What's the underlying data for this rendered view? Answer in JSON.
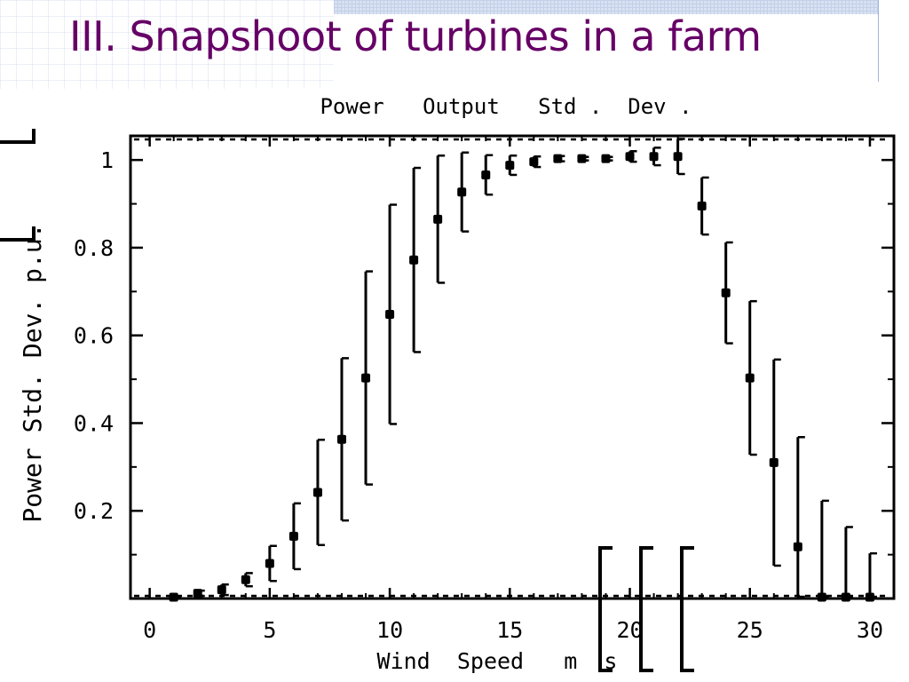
{
  "slide": {
    "title": "III. Snapshoot of turbines in a farm"
  },
  "chart_data": {
    "type": "scatter",
    "title": "Power   Output   Std .  Dev .",
    "xlabel": "Wind  Speed   m  s",
    "ylabel": "Power Std. Dev. p.u.",
    "xlim": [
      -0.8,
      31
    ],
    "ylim": [
      0,
      1.055
    ],
    "x_ticks": [
      0,
      5,
      10,
      15,
      20,
      25,
      30
    ],
    "y_ticks": [
      0.2,
      0.4,
      0.6,
      0.8,
      1
    ],
    "y_tick_labels": [
      "0.2",
      "0.4",
      "0.6",
      "0.8",
      "1"
    ],
    "grid": false,
    "series": [
      {
        "points": [
          {
            "x": 1,
            "y": 0.003,
            "err": 0.002
          },
          {
            "x": 2,
            "y": 0.012,
            "err": 0.006
          },
          {
            "x": 3,
            "y": 0.02,
            "err": 0.012
          },
          {
            "x": 4,
            "y": 0.043,
            "err": 0.015
          },
          {
            "x": 5,
            "y": 0.08,
            "err": 0.04
          },
          {
            "x": 6,
            "y": 0.142,
            "err": 0.075
          },
          {
            "x": 7,
            "y": 0.242,
            "err": 0.12
          },
          {
            "x": 8,
            "y": 0.363,
            "err": 0.185
          },
          {
            "x": 9,
            "y": 0.503,
            "err": 0.243
          },
          {
            "x": 10,
            "y": 0.648,
            "err": 0.25
          },
          {
            "x": 11,
            "y": 0.772,
            "err": 0.21
          },
          {
            "x": 12,
            "y": 0.865,
            "err": 0.145
          },
          {
            "x": 13,
            "y": 0.927,
            "err": 0.09
          },
          {
            "x": 14,
            "y": 0.966,
            "err": 0.045
          },
          {
            "x": 15,
            "y": 0.988,
            "err": 0.022
          },
          {
            "x": 16,
            "y": 0.996,
            "err": 0.012
          },
          {
            "x": 17,
            "y": 1.003,
            "err": 0.006
          },
          {
            "x": 18,
            "y": 1.003,
            "err": 0.004
          },
          {
            "x": 19,
            "y": 1.003,
            "err": 0.004
          },
          {
            "x": 20,
            "y": 1.008,
            "err": 0.012
          },
          {
            "x": 21,
            "y": 1.008,
            "err": 0.02
          },
          {
            "x": 22,
            "y": 1.008,
            "err": 0.04
          },
          {
            "x": 23,
            "y": 0.895,
            "err": 0.065
          },
          {
            "x": 24,
            "y": 0.697,
            "err": 0.115
          },
          {
            "x": 25,
            "y": 0.503,
            "err": 0.175
          },
          {
            "x": 26,
            "y": 0.31,
            "err": 0.235
          },
          {
            "x": 27,
            "y": 0.118,
            "err": 0.25
          },
          {
            "x": 28,
            "y": 0.003,
            "err": 0.22
          },
          {
            "x": 29,
            "y": 0.003,
            "err": 0.16
          },
          {
            "x": 30,
            "y": 0.003,
            "err": 0.1
          }
        ]
      }
    ]
  }
}
